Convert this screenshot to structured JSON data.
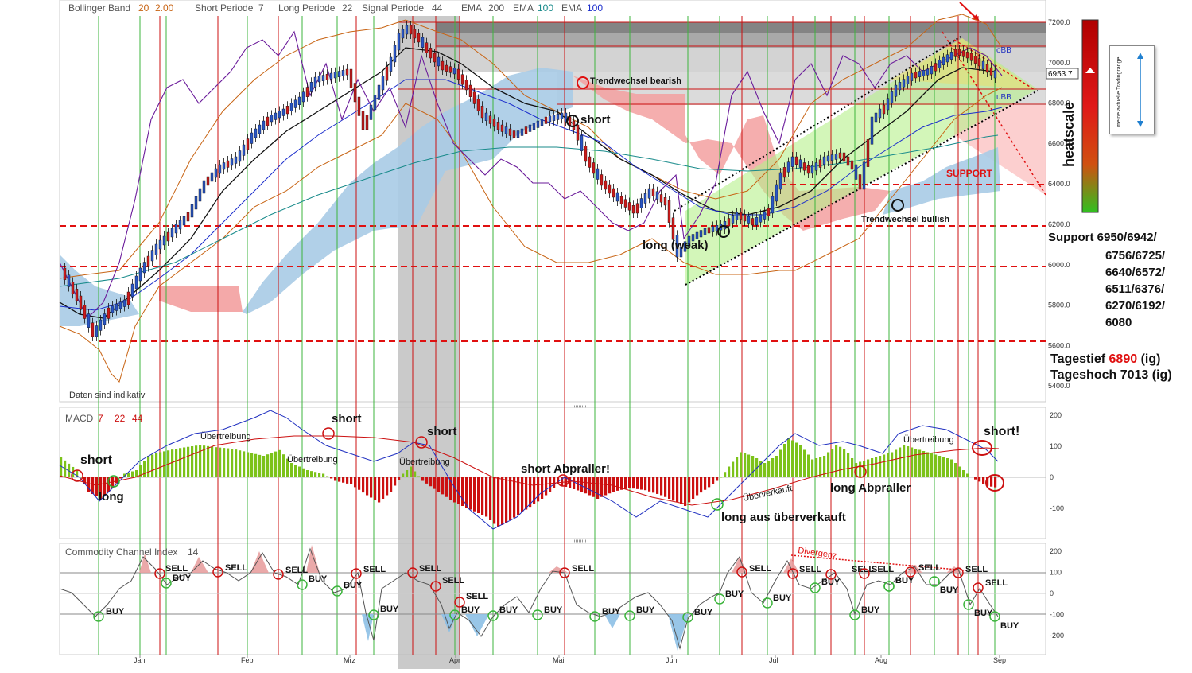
{
  "header": {
    "bollinger_label": "Bollinger Band",
    "bollinger_p1": "20",
    "bollinger_p2": "2.00",
    "short_label": "Short Periode",
    "short_val": "7",
    "long_label": "Long Periode",
    "long_val": "22",
    "signal_label": "Signal Periode",
    "signal_val": "44",
    "ema1_label": "EMA",
    "ema1_val": "200",
    "ema2_label": "EMA",
    "ema2_val": "100",
    "ema3_label": "EMA",
    "ema3_val": "100"
  },
  "disclaimer": "Daten sind indikativ",
  "price_axis": [
    "7200.0",
    "7000.0",
    "6800.0",
    "6600.0",
    "6400.0",
    "6200.0",
    "6000.0",
    "5800.0",
    "5600.0",
    "5400.0"
  ],
  "current_price": "6953.7",
  "band_labels": {
    "upper": "oBB",
    "lower": "uBB"
  },
  "heatscale": {
    "title": "heatscale",
    "box_text": "meine aktuelle Tradingrange"
  },
  "support_zone_label": "SUPPORT",
  "annotations": {
    "trend_bearish": "Trendwechsel bearish",
    "trend_bullish": "Trendwechsel bullish",
    "short": "short",
    "long_weak": "long (weak)"
  },
  "support": {
    "title": "Support 6950/6942/",
    "lines": [
      "6756/6725/",
      "6640/6572/",
      "6511/6376/",
      "6270/6192/",
      "6080"
    ]
  },
  "tagestief": {
    "label": "Tagestief",
    "value": "6890",
    "suffix": "(ig)"
  },
  "tageshoch": {
    "label": "Tageshoch",
    "value": "7013",
    "suffix": "(ig)"
  },
  "macd": {
    "label": "MACD",
    "p1": "7",
    "p2": "22",
    "p3": "44",
    "axis": [
      "200",
      "100",
      "0",
      "-100"
    ],
    "notes": {
      "short1": "short",
      "long1": "long",
      "uebertreibung1": "Übertreibung",
      "uebertreibung2": "Übertreibung",
      "short2": "short",
      "short3": "short",
      "uebertreibung3": "Übertreibung",
      "short_abpraller": "short Abpraller!",
      "ueberverkauft": "Überverkauft",
      "long_aus": "long aus überverkauft",
      "long_abpraller": "long Abpraller",
      "uebertreibung4": "Übertreibung",
      "short4": "short!"
    }
  },
  "cci": {
    "label": "Commodity Channel Index",
    "period": "14",
    "axis": [
      "200",
      "100",
      "0",
      "-100",
      "-200"
    ],
    "divergenz": "Divergenz",
    "signals": [
      {
        "text": "BUY"
      },
      {
        "text": "SELL"
      },
      {
        "text": "BUY"
      },
      {
        "text": "SELL"
      },
      {
        "text": "SELL"
      },
      {
        "text": "BUY"
      },
      {
        "text": "BUY"
      },
      {
        "text": "SELL"
      },
      {
        "text": "BUY"
      },
      {
        "text": "SELL"
      },
      {
        "text": "SELL"
      },
      {
        "text": "SELL"
      },
      {
        "text": "BUY"
      },
      {
        "text": "BUY"
      },
      {
        "text": "BUY"
      },
      {
        "text": "SELL"
      },
      {
        "text": "BUY"
      },
      {
        "text": "BUY"
      },
      {
        "text": "BUY"
      },
      {
        "text": "BUY"
      },
      {
        "text": "BUY"
      },
      {
        "text": "SELL"
      },
      {
        "text": "BUY"
      },
      {
        "text": "SELL"
      },
      {
        "text": "BUY"
      },
      {
        "text": "SELL"
      },
      {
        "text": "BUY"
      },
      {
        "text": "BUY"
      },
      {
        "text": "SELL"
      },
      {
        "text": "BUY"
      },
      {
        "text": "SELL"
      },
      {
        "text": "BUY"
      },
      {
        "text": "SELL"
      },
      {
        "text": "SELL"
      },
      {
        "text": "BUY"
      },
      {
        "text": "BUY"
      }
    ]
  },
  "x_axis": [
    "Jan",
    "Feb",
    "Mrz",
    "Apr",
    "Mai",
    "Jun",
    "Jul",
    "Aug",
    "Sep"
  ],
  "colors": {
    "bull": "#7cc21a",
    "bear": "#cc1010",
    "cloud_blue": "#a9cbe6",
    "cloud_red": "#f5a0a0"
  },
  "chart_data": {
    "type": "candlestick",
    "x_range": [
      "Dez",
      "Sep"
    ],
    "y_range": [
      5400,
      7250
    ],
    "support_levels": [
      6950,
      6942,
      6756,
      6725,
      6640,
      6572,
      6511,
      6376,
      6270,
      6192,
      6080
    ],
    "horizontal_levels": [
      7150,
      7000,
      6800,
      6400,
      6200,
      6000,
      5620
    ],
    "macd_range": [
      -200,
      200
    ],
    "cci_range": [
      -250,
      250
    ],
    "price_path": [
      {
        "x": "Dez",
        "y": 5950
      },
      {
        "x": "Jan",
        "y": 5950
      },
      {
        "x": "Feb",
        "y": 6550
      },
      {
        "x": "Mrz",
        "y": 6700
      },
      {
        "x": "Mrz",
        "y": 7150
      },
      {
        "x": "Apr",
        "y": 6800
      },
      {
        "x": "Mai",
        "y": 6650
      },
      {
        "x": "Mai",
        "y": 6400
      },
      {
        "x": "Jun",
        "y": 6050
      },
      {
        "x": "Jul",
        "y": 6450
      },
      {
        "x": "Aug",
        "y": 6800
      },
      {
        "x": "Aug",
        "y": 7050
      },
      {
        "x": "Sep",
        "y": 6950
      }
    ]
  }
}
